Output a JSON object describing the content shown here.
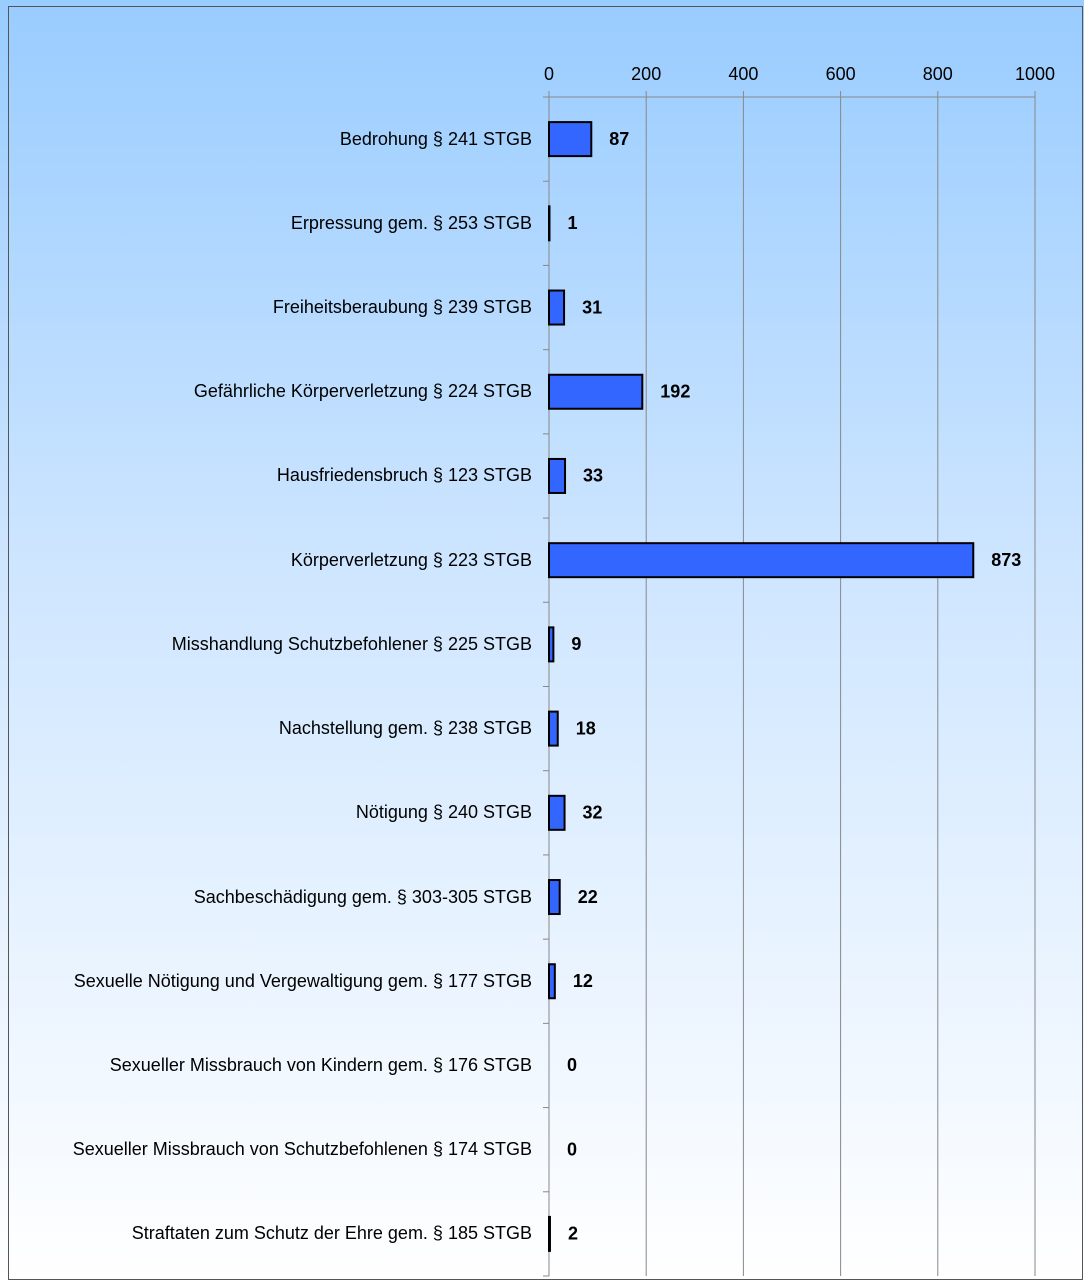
{
  "chart_data": {
    "type": "bar",
    "orientation": "horizontal",
    "categories": [
      "Bedrohung § 241 STGB",
      "Erpressung gem. § 253 STGB",
      "Freiheitsberaubung § 239 STGB",
      "Gefährliche Körperverletzung § 224 STGB",
      "Hausfriedensbruch § 123 STGB",
      "Körperverletzung § 223 STGB",
      "Misshandlung Schutzbefohlener § 225 STGB",
      "Nachstellung gem. § 238 STGB",
      "Nötigung § 240 STGB",
      "Sachbeschädigung gem. § 303-305 STGB",
      "Sexuelle Nötigung und Vergewaltigung gem. § 177 STGB",
      "Sexueller Missbrauch von Kindern gem. § 176 STGB",
      "Sexueller Missbrauch von Schutzbefohlenen § 174 STGB",
      "Straftaten zum Schutz der Ehre gem. § 185 STGB"
    ],
    "values": [
      87,
      1,
      31,
      192,
      33,
      873,
      9,
      18,
      32,
      22,
      12,
      0,
      0,
      2
    ],
    "color": "#3366ff",
    "xlim": [
      0,
      1000
    ],
    "xticks": [
      0,
      200,
      400,
      600,
      800,
      1000
    ],
    "grid": true
  }
}
